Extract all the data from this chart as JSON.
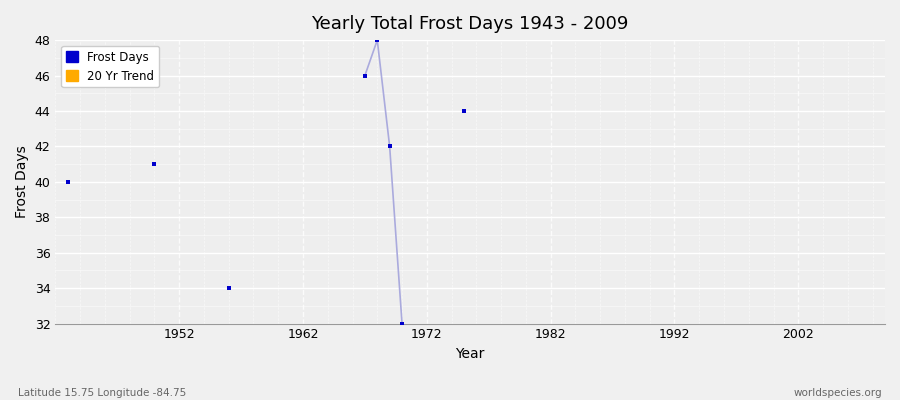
{
  "title": "Yearly Total Frost Days 1943 - 2009",
  "xlabel": "Year",
  "ylabel": "Frost Days",
  "subtitle": "Latitude 15.75 Longitude -84.75",
  "watermark": "worldspecies.org",
  "xlim": [
    1942,
    2009
  ],
  "ylim": [
    32,
    48
  ],
  "yticks": [
    32,
    34,
    36,
    38,
    40,
    42,
    44,
    46,
    48
  ],
  "xticks": [
    1952,
    1962,
    1972,
    1982,
    1992,
    2002
  ],
  "background_color": "#e8e8e8",
  "plot_bg_color": "#eeeeee",
  "grid_color": "#ffffff",
  "frost_days_color": "#0000cc",
  "frost_days_line_color": "#aaaadd",
  "trend_color": "#ffaa00",
  "data_points": [
    [
      1943,
      40
    ],
    [
      1950,
      41
    ],
    [
      1956,
      34
    ],
    [
      1967,
      46
    ],
    [
      1968,
      48
    ],
    [
      1969,
      42
    ],
    [
      1970,
      32
    ],
    [
      1975,
      44
    ]
  ],
  "legend_frost_label": "Frost Days",
  "legend_trend_label": "20 Yr Trend"
}
